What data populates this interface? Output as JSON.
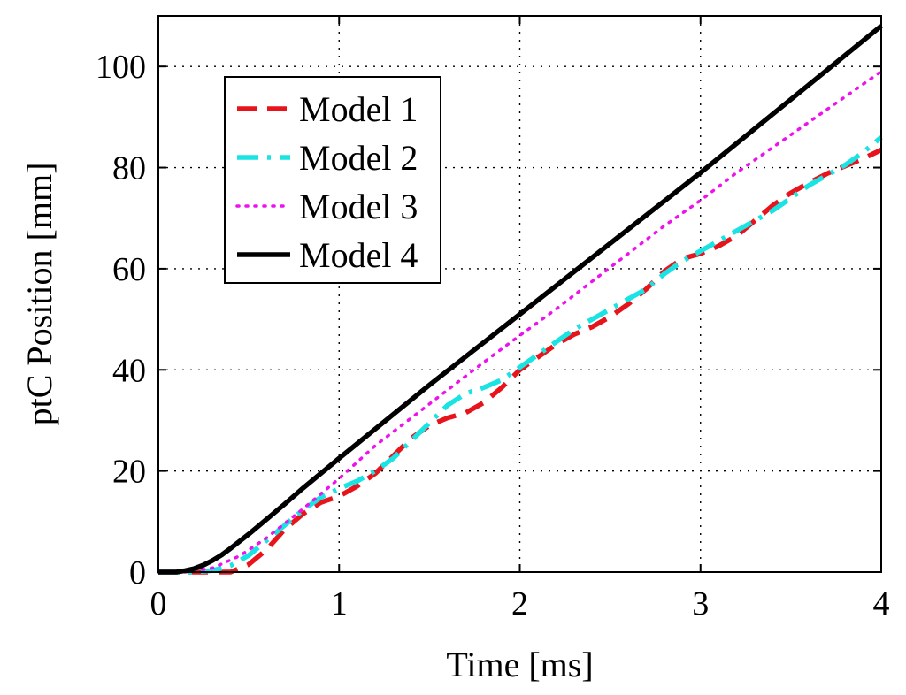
{
  "chart_data": {
    "type": "line",
    "xlabel": "Time [ms]",
    "ylabel": "ptC Position [mm]",
    "xlim": [
      0,
      4
    ],
    "ylim": [
      0,
      110
    ],
    "xticks": [
      0,
      1,
      2,
      3,
      4
    ],
    "yticks": [
      0,
      20,
      40,
      60,
      80,
      100
    ],
    "xtick_labels": [
      "0",
      "1",
      "2",
      "3",
      "4"
    ],
    "ytick_labels": [
      "0",
      "20",
      "40",
      "60",
      "80",
      "100"
    ],
    "grid": true,
    "legend_position": "top-left",
    "series": [
      {
        "name": "Model 1",
        "color": "#e8141b",
        "style": "dashed",
        "x": [
          0,
          0.2,
          0.3,
          0.4,
          0.5,
          0.6,
          0.7,
          0.8,
          0.9,
          1.0,
          1.1,
          1.2,
          1.3,
          1.4,
          1.5,
          1.6,
          1.7,
          1.8,
          1.9,
          2.0,
          2.1,
          2.2,
          2.3,
          2.4,
          2.5,
          2.6,
          2.7,
          2.8,
          2.9,
          3.0,
          3.1,
          3.2,
          3.3,
          3.4,
          3.5,
          3.6,
          3.7,
          3.8,
          3.9,
          4.0
        ],
        "y": [
          0,
          0,
          0,
          0,
          1.5,
          4.5,
          8.5,
          11.5,
          13.8,
          15,
          17,
          19.5,
          23,
          26.5,
          29,
          30.5,
          31.5,
          33.5,
          36.5,
          40,
          42.5,
          45,
          47,
          48.5,
          50.5,
          53,
          56,
          59.5,
          62,
          63,
          64.5,
          66.5,
          69.5,
          72.5,
          75,
          77,
          78.8,
          80.3,
          81.8,
          83.5
        ]
      },
      {
        "name": "Model 2",
        "color": "#19e3e3",
        "style": "dash-dot",
        "x": [
          0,
          0.2,
          0.3,
          0.4,
          0.5,
          0.6,
          0.7,
          0.8,
          0.9,
          1.0,
          1.1,
          1.2,
          1.3,
          1.4,
          1.5,
          1.6,
          1.7,
          1.8,
          1.9,
          2.0,
          2.1,
          2.2,
          2.3,
          2.4,
          2.5,
          2.6,
          2.7,
          2.8,
          2.9,
          3.0,
          3.1,
          3.2,
          3.3,
          3.4,
          3.5,
          3.6,
          3.7,
          3.8,
          3.9,
          4.0
        ],
        "y": [
          0,
          0,
          0.3,
          1.3,
          3.3,
          6.3,
          9.3,
          12.3,
          14.8,
          16.5,
          18,
          20,
          22.5,
          26,
          29.5,
          33,
          35.3,
          36.5,
          38,
          40.5,
          43,
          45.5,
          48,
          50,
          52,
          54,
          56,
          59,
          61.5,
          63.5,
          65.5,
          67.5,
          69.5,
          71.5,
          74,
          76.5,
          78.5,
          80.5,
          83,
          86
        ]
      },
      {
        "name": "Model 3",
        "color": "#ee11ee",
        "style": "dotted",
        "x": [
          0,
          0.15,
          0.3,
          0.45,
          0.6,
          0.8,
          1.0,
          1.2,
          1.4,
          1.6,
          1.8,
          2.0,
          2.2,
          2.4,
          2.6,
          2.8,
          3.0,
          3.2,
          3.4,
          3.6,
          3.8,
          4.0
        ],
        "y": [
          0,
          0,
          0.8,
          3.2,
          6.8,
          12.5,
          18.5,
          25,
          30.5,
          36,
          41.5,
          46.8,
          52,
          57.5,
          63,
          68.5,
          73.5,
          79,
          84,
          89,
          94,
          99
        ]
      },
      {
        "name": "Model 4",
        "color": "#000000",
        "style": "solid",
        "x": [
          0,
          0.1,
          0.15,
          0.2,
          0.25,
          0.3,
          0.35,
          0.4,
          0.5,
          0.6,
          0.7,
          0.8,
          1.0,
          1.5,
          2.0,
          2.5,
          3.0,
          3.5,
          4.0
        ],
        "y": [
          0,
          0,
          0.3,
          0.7,
          1.4,
          2.3,
          3.4,
          4.7,
          7.5,
          10.5,
          13.5,
          16.6,
          22.5,
          37,
          51,
          65,
          79,
          93.5,
          108
        ]
      }
    ]
  }
}
